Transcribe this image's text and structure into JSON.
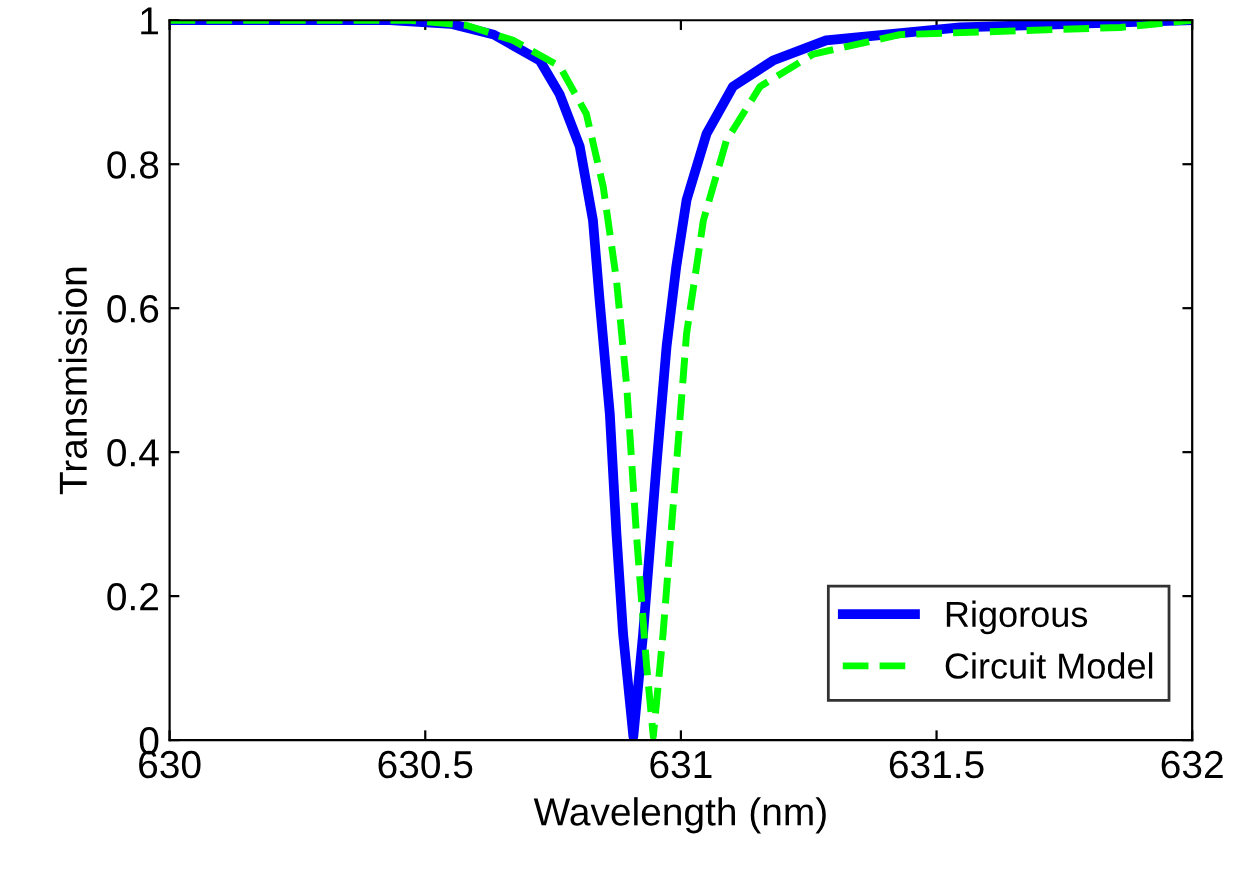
{
  "chart_data": {
    "type": "line",
    "xlabel": "Wavelength (nm)",
    "ylabel": "Transmission",
    "xlim": [
      630,
      632
    ],
    "ylim": [
      0,
      1
    ],
    "xticks": [
      630,
      630.5,
      631,
      631.5,
      632
    ],
    "yticks": [
      0,
      0.2,
      0.4,
      0.6,
      0.8,
      1
    ],
    "grid": false,
    "legend": "bottom right",
    "marker": "none",
    "series": [
      {
        "name": "Rigorous",
        "color": "#0000ff",
        "line_style": "solid",
        "x": [
          630,
          630.43,
          630.55,
          630.634,
          630.724,
          630.763,
          630.802,
          630.828,
          630.841,
          630.861,
          630.874,
          630.887,
          630.907,
          630.926,
          630.952,
          630.972,
          630.991,
          631.011,
          631.05,
          631.102,
          631.18,
          631.284,
          631.546,
          632
        ],
        "values": [
          1,
          1,
          0.995,
          0.98,
          0.944,
          0.897,
          0.825,
          0.722,
          0.611,
          0.453,
          0.286,
          0.147,
          0.005,
          0.147,
          0.38,
          0.547,
          0.658,
          0.75,
          0.842,
          0.908,
          0.944,
          0.972,
          0.99,
          1
        ]
      },
      {
        "name": "Circuit Model",
        "color": "#00ff00",
        "line_style": "dashed",
        "x": [
          630,
          630.47,
          630.58,
          630.672,
          630.763,
          630.815,
          630.848,
          630.874,
          630.894,
          630.913,
          630.933,
          630.946,
          630.965,
          630.991,
          631.011,
          631.044,
          631.089,
          631.155,
          631.259,
          631.428,
          631.859,
          632
        ],
        "values": [
          1,
          1,
          0.993,
          0.972,
          0.936,
          0.87,
          0.769,
          0.639,
          0.492,
          0.286,
          0.103,
          0.005,
          0.147,
          0.38,
          0.564,
          0.722,
          0.833,
          0.908,
          0.953,
          0.98,
          0.99,
          1
        ]
      }
    ]
  }
}
